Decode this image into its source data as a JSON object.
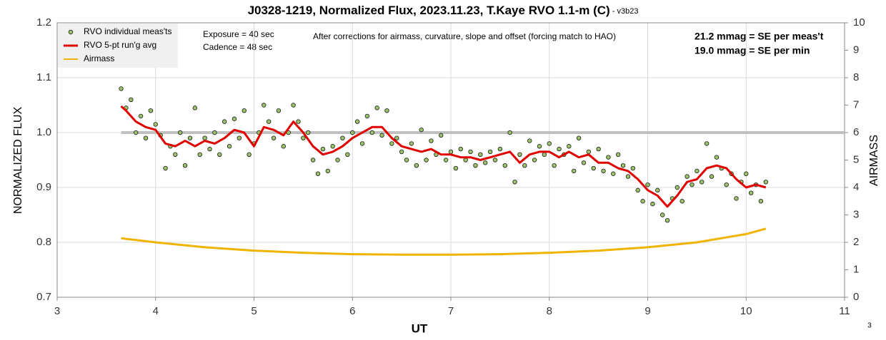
{
  "chart_data": {
    "type": "combo",
    "title": "J0328-1219, Normalized Flux, 2023.11.23, T.Kaye RVO 1.1-m (C)",
    "title_suffix": " - v3b23",
    "xlabel": "UT",
    "ylabel": "NORMALIZED FLUX",
    "y2label": "AIRMASS",
    "annotations": [
      "Exposure = 40 sec",
      "Cadence = 48 sec",
      "After corrections for airmass, curvature, slope and offset (forcing match to HAO)",
      "21.2 mmag = SE per meas't",
      "19.0 mmag = SE per min"
    ],
    "page_number": "3",
    "xlim": [
      3,
      11
    ],
    "xticks": [
      3,
      4,
      5,
      6,
      7,
      8,
      9,
      10,
      11
    ],
    "ylim": [
      0.7,
      1.2
    ],
    "yticks": [
      0.7,
      0.8,
      0.9,
      {
        "value": 1,
        "label": "1.0"
      },
      1.1,
      1.2
    ],
    "y2lim": [
      0,
      10
    ],
    "y2ticks": [
      0,
      1,
      2,
      3,
      4,
      5,
      6,
      7,
      8,
      9,
      10
    ],
    "grid": true,
    "legend": "upper left",
    "reference_line": {
      "value": 1,
      "color": "#c0c0c0"
    },
    "series": [
      {
        "name": "RVO individual meas'ts",
        "kind": "scatter",
        "color": "#9cc46a",
        "x": [
          3.65,
          3.7,
          3.75,
          3.8,
          3.85,
          3.9,
          3.95,
          4.0,
          4.05,
          4.1,
          4.15,
          4.2,
          4.25,
          4.3,
          4.35,
          4.4,
          4.45,
          4.5,
          4.55,
          4.6,
          4.65,
          4.7,
          4.75,
          4.8,
          4.85,
          4.9,
          4.95,
          5.0,
          5.05,
          5.1,
          5.15,
          5.2,
          5.25,
          5.3,
          5.35,
          5.4,
          5.45,
          5.5,
          5.55,
          5.6,
          5.65,
          5.7,
          5.75,
          5.8,
          5.85,
          5.9,
          5.95,
          6.0,
          6.05,
          6.1,
          6.15,
          6.2,
          6.25,
          6.3,
          6.35,
          6.4,
          6.45,
          6.5,
          6.55,
          6.6,
          6.65,
          6.7,
          6.75,
          6.8,
          6.85,
          6.9,
          6.95,
          7.0,
          7.05,
          7.1,
          7.15,
          7.2,
          7.25,
          7.3,
          7.35,
          7.4,
          7.45,
          7.5,
          7.55,
          7.6,
          7.65,
          7.7,
          7.75,
          7.8,
          7.85,
          7.9,
          7.95,
          8.0,
          8.05,
          8.1,
          8.15,
          8.2,
          8.25,
          8.3,
          8.35,
          8.4,
          8.45,
          8.5,
          8.55,
          8.6,
          8.65,
          8.7,
          8.75,
          8.8,
          8.85,
          8.9,
          8.95,
          9.0,
          9.05,
          9.1,
          9.15,
          9.2,
          9.25,
          9.3,
          9.35,
          9.4,
          9.45,
          9.5,
          9.55,
          9.6,
          9.65,
          9.7,
          9.75,
          9.8,
          9.85,
          9.9,
          9.95,
          10.0,
          10.05,
          10.1,
          10.15,
          10.2
        ],
        "values": [
          1.08,
          1.045,
          1.06,
          1.0,
          1.03,
          0.99,
          1.04,
          1.015,
          0.995,
          0.935,
          0.975,
          0.96,
          1.0,
          0.94,
          0.99,
          1.045,
          0.96,
          0.99,
          0.97,
          1.0,
          0.96,
          1.02,
          0.975,
          1.025,
          0.99,
          1.04,
          0.96,
          0.98,
          1.0,
          1.05,
          1.02,
          0.99,
          1.04,
          0.975,
          1.0,
          1.05,
          1.02,
          0.99,
          1.0,
          0.95,
          0.925,
          0.97,
          0.93,
          0.975,
          0.95,
          0.99,
          0.96,
          1.0,
          1.02,
          0.98,
          1.03,
          1.0,
          1.045,
          0.995,
          1.04,
          0.98,
          0.99,
          0.965,
          0.95,
          0.98,
          0.94,
          1.005,
          0.95,
          0.985,
          0.96,
          0.995,
          0.95,
          0.965,
          0.935,
          0.97,
          0.95,
          0.965,
          0.94,
          0.96,
          0.945,
          0.965,
          0.95,
          0.97,
          0.94,
          1.0,
          0.91,
          0.96,
          0.94,
          0.985,
          0.95,
          0.975,
          0.96,
          0.98,
          0.94,
          0.97,
          0.96,
          0.975,
          0.93,
          0.99,
          0.945,
          0.965,
          0.935,
          0.97,
          0.93,
          0.955,
          0.925,
          0.96,
          0.94,
          0.92,
          0.935,
          0.895,
          0.875,
          0.905,
          0.87,
          0.895,
          0.85,
          0.84,
          0.88,
          0.9,
          0.875,
          0.92,
          0.905,
          0.93,
          0.91,
          0.98,
          0.92,
          0.955,
          0.935,
          0.905,
          0.925,
          0.88,
          0.91,
          0.925,
          0.89,
          0.905,
          0.875,
          0.91
        ]
      },
      {
        "name": "RVO 5-pt run'g avg",
        "kind": "line",
        "color": "#e00000",
        "x": [
          3.65,
          3.7,
          3.8,
          3.9,
          4.0,
          4.1,
          4.2,
          4.3,
          4.4,
          4.5,
          4.6,
          4.7,
          4.8,
          4.9,
          5.0,
          5.1,
          5.2,
          5.3,
          5.4,
          5.5,
          5.6,
          5.7,
          5.8,
          5.9,
          6.0,
          6.1,
          6.2,
          6.3,
          6.4,
          6.5,
          6.6,
          6.7,
          6.8,
          6.9,
          7.0,
          7.1,
          7.2,
          7.3,
          7.4,
          7.5,
          7.6,
          7.7,
          7.8,
          7.9,
          8.0,
          8.1,
          8.2,
          8.3,
          8.4,
          8.5,
          8.6,
          8.7,
          8.8,
          8.9,
          9.0,
          9.1,
          9.2,
          9.3,
          9.4,
          9.5,
          9.6,
          9.7,
          9.8,
          9.9,
          10.0,
          10.1,
          10.2
        ],
        "values": [
          1.048,
          1.04,
          1.02,
          1.01,
          1.005,
          0.98,
          0.975,
          0.985,
          0.975,
          0.985,
          0.98,
          0.99,
          1.005,
          1.0,
          0.975,
          1.01,
          1.005,
          0.995,
          1.02,
          1.0,
          0.975,
          0.96,
          0.965,
          0.975,
          0.99,
          1.0,
          1.01,
          1.01,
          0.99,
          0.975,
          0.97,
          0.965,
          0.97,
          0.96,
          0.96,
          0.955,
          0.955,
          0.95,
          0.955,
          0.96,
          0.965,
          0.945,
          0.96,
          0.965,
          0.965,
          0.955,
          0.965,
          0.955,
          0.96,
          0.945,
          0.945,
          0.935,
          0.93,
          0.915,
          0.895,
          0.885,
          0.865,
          0.885,
          0.91,
          0.915,
          0.935,
          0.94,
          0.935,
          0.915,
          0.9,
          0.905,
          0.9
        ]
      },
      {
        "name": "Airmass",
        "kind": "line",
        "axis": "y2",
        "color": "#f0b400",
        "x": [
          3.65,
          4.0,
          4.5,
          5.0,
          5.5,
          6.0,
          6.5,
          7.0,
          7.5,
          8.0,
          8.5,
          9.0,
          9.5,
          10.0,
          10.2
        ],
        "values": [
          2.15,
          2.0,
          1.82,
          1.7,
          1.62,
          1.57,
          1.55,
          1.55,
          1.57,
          1.62,
          1.7,
          1.82,
          2.0,
          2.3,
          2.5
        ]
      }
    ]
  }
}
